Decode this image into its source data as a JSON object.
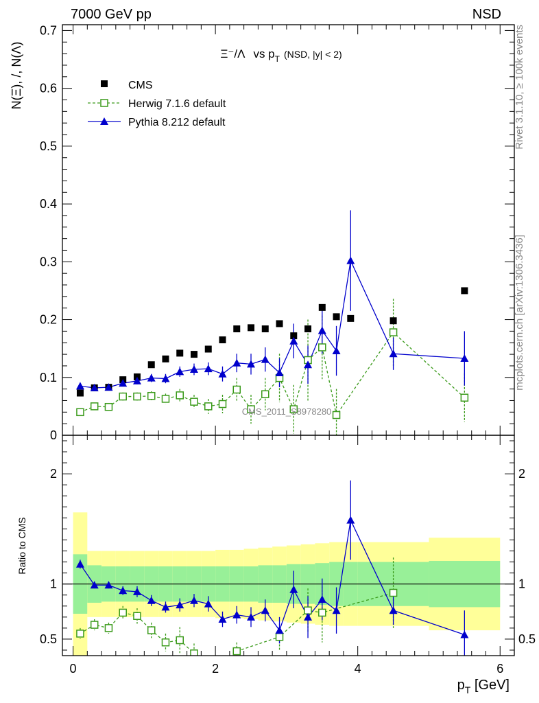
{
  "header": {
    "left": "7000 GeV pp",
    "right": "NSD"
  },
  "side_text": {
    "top": "Rivet 3.1.10, ≥ 100k events",
    "bottom": "mcplots.cern.ch [arXiv:1306.3436]"
  },
  "watermark": "CMS_2011_S8978280",
  "colors": {
    "cms": "#000000",
    "herwig": "#3a9a1a",
    "pythia": "#0000cc",
    "band_inner": "#98f098",
    "band_outer": "#ffff99"
  },
  "chart_data": [
    {
      "type": "scatter",
      "panel": "main",
      "title": "Ξ⁻/Λ  vs p_T (NSD, |y| < 2)",
      "title_parts": {
        "ratio": "Ξ⁻/Λ",
        "vs": "vs p",
        "sub": "T",
        "cond": "(NSD, |y| < 2)"
      },
      "ylabel": "N(Ξ), /, N(Λ)",
      "xlim": [
        -0.15,
        6.2
      ],
      "ylim": [
        0,
        0.71
      ],
      "yticks": [
        0,
        0.1,
        0.2,
        0.3,
        0.4,
        0.5,
        0.6,
        0.7
      ],
      "ytick_labels": [
        "0",
        "0.1",
        "0.2",
        "0.3",
        "0.4",
        "0.5",
        "0.6",
        "0.7"
      ],
      "legend": [
        "CMS",
        "Herwig 7.1.6 default",
        "Pythia 8.212 default"
      ],
      "legend_position": "top-left",
      "series": [
        {
          "name": "CMS",
          "x": [
            0.1,
            0.3,
            0.5,
            0.7,
            0.9,
            1.1,
            1.3,
            1.5,
            1.7,
            1.9,
            2.1,
            2.3,
            2.5,
            2.7,
            2.9,
            3.1,
            3.3,
            3.5,
            3.7,
            3.9,
            4.5,
            5.5
          ],
          "y": [
            0.073,
            0.082,
            0.083,
            0.096,
            0.101,
            0.122,
            0.132,
            0.142,
            0.14,
            0.149,
            0.165,
            0.184,
            0.186,
            0.184,
            0.193,
            0.172,
            0.184,
            0.221,
            0.205,
            0.202,
            0.198,
            0.25
          ]
        },
        {
          "name": "Herwig 7.1.6 default",
          "x": [
            0.1,
            0.3,
            0.5,
            0.7,
            0.9,
            1.1,
            1.3,
            1.5,
            1.7,
            1.9,
            2.1,
            2.3,
            2.5,
            2.7,
            2.9,
            3.1,
            3.3,
            3.5,
            3.7,
            4.5,
            5.5
          ],
          "y": [
            0.04,
            0.05,
            0.049,
            0.067,
            0.067,
            0.068,
            0.063,
            0.069,
            0.058,
            0.05,
            0.054,
            0.079,
            0.045,
            0.071,
            0.099,
            0.045,
            0.13,
            0.152,
            0.035,
            0.178,
            0.065
          ],
          "yerr": [
            0.004,
            0.005,
            0.005,
            0.007,
            0.007,
            0.008,
            0.009,
            0.011,
            0.012,
            0.013,
            0.016,
            0.02,
            0.025,
            0.028,
            0.042,
            0.042,
            0.07,
            0.055,
            0.045,
            0.058,
            0.042
          ]
        },
        {
          "name": "Pythia 8.212 default",
          "x": [
            0.1,
            0.3,
            0.5,
            0.7,
            0.9,
            1.1,
            1.3,
            1.5,
            1.7,
            1.9,
            2.1,
            2.3,
            2.5,
            2.7,
            2.9,
            3.1,
            3.3,
            3.5,
            3.7,
            3.9,
            4.5,
            5.5
          ],
          "y": [
            0.085,
            0.082,
            0.083,
            0.09,
            0.094,
            0.099,
            0.098,
            0.11,
            0.114,
            0.115,
            0.106,
            0.125,
            0.123,
            0.131,
            0.108,
            0.163,
            0.122,
            0.181,
            0.146,
            0.302,
            0.141,
            0.133
          ],
          "yerr": [
            0.003,
            0.003,
            0.004,
            0.005,
            0.006,
            0.007,
            0.008,
            0.009,
            0.01,
            0.011,
            0.013,
            0.016,
            0.018,
            0.021,
            0.025,
            0.03,
            0.033,
            0.04,
            0.043,
            0.087,
            0.028,
            0.047
          ]
        }
      ]
    },
    {
      "type": "scatter",
      "panel": "ratio",
      "ylabel": "Ratio to CMS",
      "xlabel": "p_T [GeV]",
      "xlabel_parts": {
        "p": "p",
        "sub": "T",
        "unit": " [GeV]"
      },
      "xlim": [
        -0.15,
        6.2
      ],
      "ylim": [
        0.35,
        2.35
      ],
      "xticks": [
        0,
        2,
        4,
        6
      ],
      "xtick_labels": [
        "0",
        "2",
        "4",
        "6"
      ],
      "yticks": [
        0.5,
        1,
        2
      ],
      "ytick_labels": [
        "0.5",
        "1",
        "2"
      ],
      "bands": {
        "edges": [
          0,
          0.2,
          0.4,
          0.6,
          0.8,
          1.0,
          1.2,
          1.4,
          1.6,
          1.8,
          2.0,
          2.2,
          2.4,
          2.6,
          2.8,
          3.0,
          3.2,
          3.4,
          3.6,
          3.8,
          4.0,
          5.0,
          6.0
        ],
        "inner": [
          0.27,
          0.17,
          0.16,
          0.16,
          0.16,
          0.16,
          0.16,
          0.16,
          0.16,
          0.16,
          0.16,
          0.16,
          0.16,
          0.17,
          0.17,
          0.18,
          0.18,
          0.19,
          0.2,
          0.2,
          0.2,
          0.21
        ],
        "outer": [
          0.65,
          0.3,
          0.3,
          0.3,
          0.3,
          0.3,
          0.3,
          0.3,
          0.3,
          0.3,
          0.31,
          0.31,
          0.32,
          0.33,
          0.34,
          0.35,
          0.36,
          0.37,
          0.38,
          0.38,
          0.38,
          0.42
        ]
      },
      "series": [
        {
          "name": "Herwig 7.1.6 default",
          "x": [
            0.1,
            0.3,
            0.5,
            0.7,
            0.9,
            1.1,
            1.3,
            1.5,
            1.7,
            2.3,
            2.9,
            3.3,
            3.5,
            4.5
          ],
          "y": [
            0.55,
            0.63,
            0.6,
            0.74,
            0.71,
            0.58,
            0.47,
            0.49,
            0.37,
            0.39,
            0.52,
            0.76,
            0.74,
            0.92
          ],
          "yerr": [
            0.05,
            0.05,
            0.05,
            0.06,
            0.07,
            0.07,
            0.08,
            0.12,
            0.09,
            0.08,
            0.12,
            0.2,
            0.27,
            0.32
          ]
        },
        {
          "name": "Pythia 8.212 default",
          "x": [
            0.1,
            0.3,
            0.5,
            0.7,
            0.9,
            1.1,
            1.3,
            1.5,
            1.7,
            1.9,
            2.1,
            2.3,
            2.5,
            2.7,
            2.9,
            3.1,
            3.3,
            3.5,
            3.7,
            3.9,
            4.5,
            5.5
          ],
          "y": [
            1.18,
            0.99,
            0.99,
            0.94,
            0.93,
            0.85,
            0.79,
            0.81,
            0.85,
            0.82,
            0.68,
            0.72,
            0.7,
            0.76,
            0.58,
            0.95,
            0.7,
            0.86,
            0.76,
            1.58,
            0.76,
            0.54
          ],
          "yerr": [
            0.04,
            0.03,
            0.03,
            0.04,
            0.05,
            0.05,
            0.05,
            0.06,
            0.06,
            0.07,
            0.07,
            0.08,
            0.09,
            0.1,
            0.12,
            0.17,
            0.19,
            0.19,
            0.21,
            0.36,
            0.13,
            0.22
          ]
        }
      ]
    }
  ]
}
